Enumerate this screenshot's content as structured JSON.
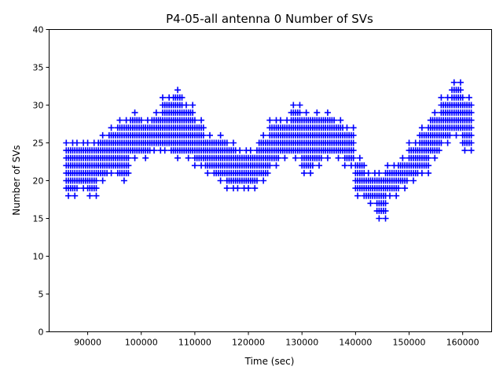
{
  "chart_data": {
    "type": "scatter",
    "title": "P4-05-all antenna 0 Number of SVs",
    "xlabel": "Time (sec)",
    "ylabel": "Number of SVs",
    "xlim": [
      82800,
      165400
    ],
    "ylim": [
      0,
      40
    ],
    "xticks": [
      90000,
      100000,
      110000,
      120000,
      130000,
      140000,
      150000,
      160000
    ],
    "yticks": [
      0,
      5,
      10,
      15,
      20,
      25,
      30,
      35,
      40
    ],
    "grid": false,
    "marker": "+",
    "color": "#0000ff",
    "series_note": "Envelope per 2000 s bin: [bin_start, min_svs, max_svs]",
    "bins": [
      [
        86000,
        18,
        25
      ],
      [
        88000,
        19,
        25
      ],
      [
        90000,
        18,
        25
      ],
      [
        92000,
        20,
        26
      ],
      [
        94000,
        21,
        27
      ],
      [
        96000,
        20,
        28
      ],
      [
        98000,
        23,
        29
      ],
      [
        100000,
        23,
        28
      ],
      [
        102000,
        24,
        29
      ],
      [
        104000,
        24,
        31
      ],
      [
        106000,
        23,
        32
      ],
      [
        108000,
        23,
        30
      ],
      [
        110000,
        22,
        28
      ],
      [
        112000,
        21,
        26
      ],
      [
        114000,
        20,
        26
      ],
      [
        116000,
        19,
        25
      ],
      [
        118000,
        19,
        24
      ],
      [
        120000,
        19,
        24
      ],
      [
        122000,
        20,
        26
      ],
      [
        124000,
        22,
        28
      ],
      [
        126000,
        23,
        28
      ],
      [
        128000,
        23,
        30
      ],
      [
        130000,
        21,
        29
      ],
      [
        132000,
        22,
        29
      ],
      [
        134000,
        23,
        29
      ],
      [
        136000,
        23,
        28
      ],
      [
        138000,
        22,
        27
      ],
      [
        140000,
        18,
        23
      ],
      [
        142000,
        17,
        21
      ],
      [
        144000,
        15,
        21
      ],
      [
        146000,
        18,
        22
      ],
      [
        148000,
        19,
        23
      ],
      [
        150000,
        20,
        25
      ],
      [
        152000,
        21,
        27
      ],
      [
        154000,
        23,
        29
      ],
      [
        156000,
        25,
        31
      ],
      [
        158000,
        26,
        33
      ],
      [
        160000,
        24,
        31
      ]
    ]
  }
}
